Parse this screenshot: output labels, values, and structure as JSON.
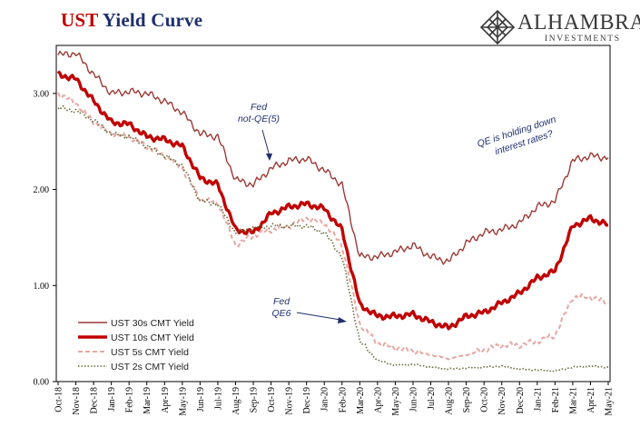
{
  "header": {
    "title_ust": "UST",
    "title_rest": " Yield Curve"
  },
  "logo": {
    "name": "ALHAMBRA",
    "sub": "INVESTMENTS"
  },
  "annotations": {
    "fed_not_qe": [
      "Fed",
      "not-QE(5)"
    ],
    "fed_qe6": [
      "Fed",
      "QE6"
    ],
    "qe_holding": [
      "QE is holding down",
      "interest rates?"
    ]
  },
  "colors": {
    "s30": "#9b3a35",
    "s10": "#c00000",
    "s5": "#e6a8a3",
    "s2": "#6b6b3a",
    "annotation": "#1f2f6e"
  },
  "chart_data": {
    "type": "line",
    "title": "UST Yield Curve",
    "xlabel": "",
    "ylabel": "",
    "ylim": [
      0.0,
      3.5
    ],
    "yticks": [
      "0.00",
      "1.00",
      "2.00",
      "3.00"
    ],
    "xticks": [
      "Oct-18",
      "Nov-18",
      "Dec-18",
      "Jan-19",
      "Feb-19",
      "Mar-19",
      "Apr-19",
      "May-19",
      "Jun-19",
      "Jul-19",
      "Aug-19",
      "Sep-19",
      "Oct-19",
      "Nov-19",
      "Dec-19",
      "Jan-20",
      "Feb-20",
      "Mar-20",
      "Apr-20",
      "May-20",
      "Jun-20",
      "Jul-20",
      "Aug-20",
      "Sep-20",
      "Oct-20",
      "Nov-20",
      "Dec-20",
      "Jan-21",
      "Feb-21",
      "Mar-21",
      "Apr-21",
      "May-21"
    ],
    "legend_position": "bottom-left",
    "series": [
      {
        "name": "UST 30s CMT Yield",
        "style": "solid-thin",
        "values": [
          3.4,
          3.42,
          3.2,
          3.0,
          3.02,
          3.0,
          2.92,
          2.8,
          2.58,
          2.55,
          2.1,
          2.05,
          2.22,
          2.3,
          2.32,
          2.2,
          2.05,
          1.3,
          1.3,
          1.35,
          1.42,
          1.3,
          1.25,
          1.44,
          1.55,
          1.58,
          1.65,
          1.82,
          1.88,
          2.3,
          2.35,
          2.33
        ]
      },
      {
        "name": "UST 10s CMT Yield",
        "style": "solid-thick",
        "values": [
          3.2,
          3.15,
          2.92,
          2.7,
          2.68,
          2.55,
          2.52,
          2.45,
          2.12,
          2.05,
          1.58,
          1.55,
          1.75,
          1.82,
          1.85,
          1.8,
          1.58,
          0.8,
          0.68,
          0.68,
          0.7,
          0.62,
          0.56,
          0.68,
          0.72,
          0.82,
          0.92,
          1.08,
          1.15,
          1.62,
          1.7,
          1.63
        ]
      },
      {
        "name": "UST 5s CMT Yield",
        "style": "dashed",
        "values": [
          3.0,
          2.9,
          2.7,
          2.58,
          2.55,
          2.45,
          2.35,
          2.22,
          1.9,
          1.86,
          1.42,
          1.52,
          1.58,
          1.62,
          1.7,
          1.65,
          1.42,
          0.6,
          0.4,
          0.35,
          0.32,
          0.28,
          0.24,
          0.28,
          0.33,
          0.38,
          0.38,
          0.42,
          0.48,
          0.88,
          0.88,
          0.82
        ]
      },
      {
        "name": "UST 2s CMT Yield",
        "style": "dotted",
        "values": [
          2.85,
          2.82,
          2.72,
          2.58,
          2.55,
          2.45,
          2.35,
          2.25,
          1.88,
          1.85,
          1.55,
          1.6,
          1.62,
          1.62,
          1.62,
          1.55,
          1.3,
          0.42,
          0.22,
          0.17,
          0.18,
          0.15,
          0.13,
          0.14,
          0.15,
          0.16,
          0.13,
          0.12,
          0.11,
          0.15,
          0.16,
          0.15
        ]
      }
    ]
  }
}
